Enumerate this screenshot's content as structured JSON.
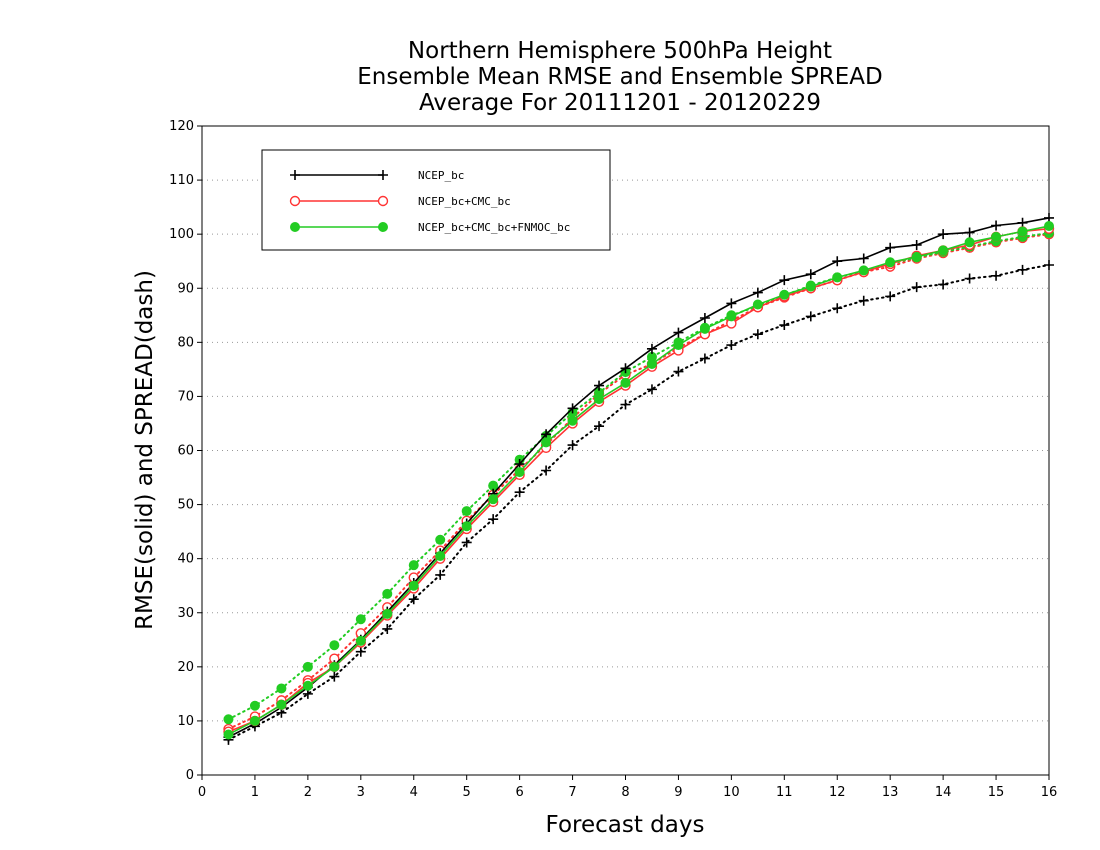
{
  "chart_data": {
    "type": "line",
    "title": [
      "Northern Hemisphere 500hPa Height",
      "Ensemble Mean RMSE and Ensemble SPREAD",
      "Average For 20111201 - 20120229"
    ],
    "xlabel": "Forecast days",
    "ylabel": "RMSE(solid) and SPREAD(dash)",
    "xlim": [
      0,
      16
    ],
    "ylim": [
      0,
      120
    ],
    "x_ticks": [
      "0",
      "1",
      "2",
      "3",
      "4",
      "5",
      "6",
      "7",
      "8",
      "9",
      "10",
      "11",
      "12",
      "13",
      "14",
      "15",
      "16"
    ],
    "y_ticks": [
      "0",
      "10",
      "20",
      "30",
      "40",
      "50",
      "60",
      "70",
      "80",
      "90",
      "100",
      "110",
      "120"
    ],
    "grid": "horizontal dotted",
    "legend_placement": "top-left",
    "x": [
      0.5,
      1,
      1.5,
      2,
      2.5,
      3,
      3.5,
      4,
      4.5,
      5,
      5.5,
      6,
      6.5,
      7,
      7.5,
      8,
      8.5,
      9,
      9.5,
      10,
      10.5,
      11,
      11.5,
      12,
      12.5,
      13,
      13.5,
      14,
      14.5,
      15,
      15.5,
      16
    ],
    "series": [
      {
        "name": "NCEP_bc",
        "kind": "rmse",
        "line_style": "solid",
        "marker": "plus",
        "color": "#000000",
        "values": [
          7.0,
          9.5,
          12.5,
          16.2,
          20.3,
          25.0,
          30.2,
          35.5,
          41.0,
          46.5,
          52.0,
          57.5,
          63.0,
          67.8,
          72.0,
          75.2,
          78.8,
          81.8,
          84.5,
          87.2,
          89.2,
          91.5,
          92.6,
          95.0,
          95.5,
          97.5,
          98.0,
          100.0,
          100.3,
          101.6,
          102.1,
          103.0
        ]
      },
      {
        "name": "NCEP_bc+CMC_bc",
        "kind": "rmse",
        "line_style": "solid",
        "marker": "open-circle",
        "color": "#ff3333",
        "values": [
          8.0,
          10.0,
          13.0,
          17.0,
          20.0,
          24.5,
          29.5,
          34.5,
          40.0,
          45.5,
          50.5,
          55.5,
          60.5,
          65.0,
          69.0,
          72.0,
          75.5,
          78.5,
          81.5,
          83.5,
          86.5,
          88.5,
          90.0,
          91.5,
          93.0,
          94.5,
          96.0,
          97.0,
          98.0,
          99.5,
          100.5,
          101.0
        ]
      },
      {
        "name": "NCEP_bc+CMC_bc+FNMOC_bc",
        "kind": "rmse",
        "line_style": "solid",
        "marker": "filled-circle",
        "color": "#22cc22",
        "values": [
          7.5,
          10.0,
          13.0,
          16.5,
          20.0,
          24.8,
          29.8,
          35.0,
          40.5,
          46.0,
          51.0,
          56.0,
          61.5,
          65.5,
          69.5,
          72.5,
          76.0,
          79.5,
          82.5,
          84.8,
          87.0,
          88.8,
          90.3,
          92.0,
          93.3,
          94.8,
          95.8,
          97.0,
          98.5,
          99.5,
          100.5,
          101.5
        ]
      },
      {
        "name": "NCEP_bc",
        "kind": "spread",
        "line_style": "dotted",
        "marker": "plus",
        "color": "#000000",
        "values": [
          6.5,
          9.0,
          11.5,
          15.0,
          18.2,
          22.8,
          27.0,
          32.5,
          37.0,
          43.0,
          47.3,
          52.3,
          56.3,
          61.0,
          64.5,
          68.5,
          71.3,
          74.6,
          77.0,
          79.5,
          81.5,
          83.2,
          84.8,
          86.3,
          87.7,
          88.5,
          90.2,
          90.7,
          91.8,
          92.3,
          93.4,
          94.3
        ]
      },
      {
        "name": "NCEP_bc+CMC_bc",
        "kind": "spread",
        "line_style": "dotted",
        "marker": "open-circle",
        "color": "#ff3333",
        "values": [
          8.5,
          10.8,
          13.8,
          17.5,
          21.5,
          26.2,
          31.0,
          36.5,
          41.5,
          47.0,
          51.8,
          56.5,
          61.0,
          66.0,
          70.5,
          74.0,
          76.0,
          79.0,
          81.5,
          84.0,
          86.5,
          88.3,
          90.0,
          91.5,
          93.0,
          94.0,
          95.5,
          96.5,
          97.5,
          98.5,
          99.3,
          100.0
        ]
      },
      {
        "name": "NCEP_bc+CMC_bc+FNMOC_bc",
        "kind": "spread",
        "line_style": "dotted",
        "marker": "filled-circle",
        "color": "#22cc22",
        "values": [
          10.3,
          12.8,
          16.0,
          20.0,
          24.0,
          28.8,
          33.5,
          38.8,
          43.5,
          48.8,
          53.5,
          58.3,
          62.7,
          67.0,
          70.7,
          74.5,
          77.3,
          80.0,
          82.7,
          85.0,
          86.7,
          88.7,
          90.5,
          92.0,
          93.2,
          94.5,
          95.7,
          96.7,
          97.7,
          98.7,
          99.5,
          100.2
        ]
      }
    ]
  }
}
